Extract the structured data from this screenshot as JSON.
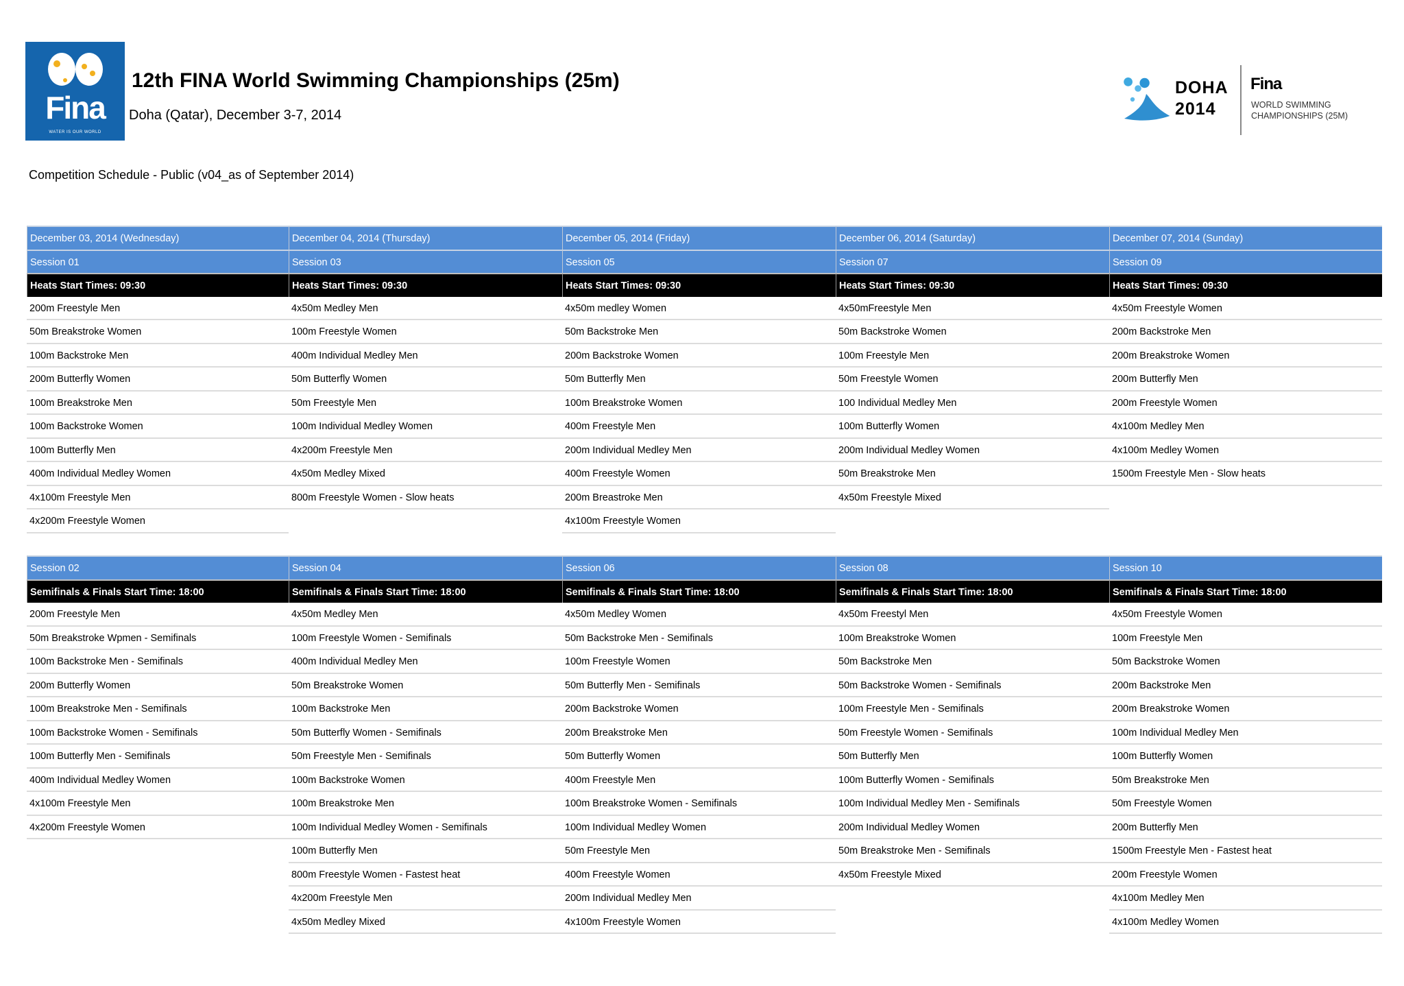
{
  "header": {
    "logo_text": "Fina",
    "logo_tagline": "WATER IS OUR WORLD",
    "title": "12th FINA World Swimming Championships (25m)",
    "subtitle": "Doha (Qatar), December 3-7, 2014",
    "schedule_note": "Competition Schedule - Public (v04_as of September 2014)",
    "event_logo": {
      "city": "DOHA",
      "year": "2014",
      "brand": "Fina",
      "line1": "WORLD SWIMMING",
      "line2": "CHAMPIONSHIPS (25M)"
    }
  },
  "colors": {
    "session_header": "#538dd5",
    "time_header": "#000000",
    "row_divider": "#dcdcdc",
    "fina_blue": "#1565ad"
  },
  "heats": [
    {
      "date": "December 03, 2014 (Wednesday)",
      "session": "Session 01",
      "time": "Heats Start Times: 09:30",
      "events": [
        "200m Freestyle  Men",
        "50m Breakstroke  Women",
        "100m Backstroke Men",
        "200m Butterfly  Women",
        "100m Breakstroke  Men",
        "100m Backstroke Women",
        "100m Butterfly  Men",
        "400m Individual Medley  Women",
        "4x100m Freestyle  Men",
        "4x200m Freestyle  Women"
      ]
    },
    {
      "date": "December 04, 2014 (Thursday)",
      "session": "Session 03",
      "time": "Heats Start Times: 09:30",
      "events": [
        "4x50m Medley Men",
        "100m Freestyle  Women",
        "400m Individual Medley  Men",
        "50m Butterfly  Women",
        "50m Freestyle  Men",
        "100m Individual Medley  Women",
        "4x200m Freestyle  Men",
        "4x50m Medley Mixed",
        "800m Freestyle Women - Slow heats"
      ]
    },
    {
      "date": "December 05, 2014 (Friday)",
      "session": "Session 05",
      "time": "Heats Start Times: 09:30",
      "events": [
        "4x50m medley Women",
        "50m Backstroke Men",
        "200m Backstroke Women",
        "50m Butterfly  Men",
        "100m Breakstroke  Women",
        "400m Freestyle  Men",
        "200m Individual Medley  Men",
        "400m Freestyle  Women",
        "200m Breastroke Men",
        "4x100m Freestyle  Women"
      ]
    },
    {
      "date": "December 06, 2014 (Saturday)",
      "session": "Session 07",
      "time": "Heats Start Times: 09:30",
      "events": [
        "4x50mFreestyle Men",
        "50m Backstroke Women",
        "100m Freestyle  Men",
        "50m Freestyle  Women",
        "100 Individual Medley  Men",
        "100m Butterfly  Women",
        "200m Individual Medley  Women",
        "50m Breakstroke  Men",
        "4x50m Freestyle Mixed"
      ]
    },
    {
      "date": "December 07, 2014 (Sunday)",
      "session": "Session 09",
      "time": "Heats Start Times: 09:30",
      "events": [
        "4x50m Freestyle Women",
        "200m Backstroke Men",
        "200m Breakstroke  Women",
        "200m Butterfly  Men",
        "200m Freestyle  Women",
        "4x100m Medley Men",
        "4x100m Medley Women",
        "1500m Freestyle  Men - Slow heats"
      ]
    }
  ],
  "finals": [
    {
      "session": "Session 02",
      "time": "Semifinals & Finals Start Time: 18:00",
      "events": [
        "200m Freestyle  Men",
        "50m Breakstroke  Wpmen - Semifinals",
        "100m Backstroke Men - Semifinals",
        "200m Butterfly  Women",
        "100m Breakstroke  Men - Semifinals",
        "100m Backstroke Women - Semifinals",
        "100m Butterfly  Men - Semifinals",
        "400m Individual Medley  Women",
        "4x100m Freestyle  Men",
        "4x200m Freestyle  Women"
      ]
    },
    {
      "session": "Session 04",
      "time": "Semifinals & Finals Start Time: 18:00",
      "events": [
        "4x50m Medley Men",
        "100m Freestyle  Women - Semifinals",
        "400m Individual Medley  Men",
        "50m Breakstroke  Women",
        "100m Backstroke Men",
        "50m Butterfly  Women - Semifinals",
        "50m Freestyle  Men - Semifinals",
        "100m Backstroke Women",
        "100m Breakstroke  Men",
        "100m Individual Medley  Women - Semifinals",
        "100m Butterfly  Men",
        "800m Freestyle  Women - Fastest  heat",
        "4x200m Freestyle  Men",
        "4x50m Medley Mixed"
      ]
    },
    {
      "session": "Session 06",
      "time": "Semifinals & Finals Start Time: 18:00",
      "events": [
        "4x50m Medley Women",
        "50m Backstroke Men - Semifinals",
        "100m Freestyle  Women",
        "50m Butterfly  Men - Semifinals",
        "200m Backstroke Women",
        "200m Breakstroke  Men",
        "50m Butterfly  Women",
        "400m Freestyle  Men",
        "100m Breakstroke  Women - Semifinals",
        "100m Individual Medley  Women",
        "50m Freestyle  Men",
        "400m Freestyle  Women",
        "200m Individual Medley  Men",
        "4x100m Freestyle  Women"
      ]
    },
    {
      "session": "Session 08",
      "time": "Semifinals & Finals Start Time: 18:00",
      "events": [
        "4x50m Freestyl Men",
        "100m Breakstroke  Women",
        "50m Backstroke Men",
        "50m Backstroke Women - Semifinals",
        "100m Freestyle  Men - Semifinals",
        "50m Freestyle  Women - Semifinals",
        "50m Butterfly  Men",
        "100m Butterfly  Women - Semifinals",
        "100m Individual Medley  Men - Semifinals",
        "200m Individual Medley  Women",
        "50m Breakstroke  Men - Semifinals",
        "4x50m Freestyle Mixed"
      ]
    },
    {
      "session": "Session 10",
      "time": "Semifinals & Finals Start Time: 18:00",
      "events": [
        "4x50m Freestyle Women",
        "100m Freestyle  Men",
        "50m Backstroke Women",
        "200m Backstroke Men",
        "200m Breakstroke  Women",
        "100m Individual Medley  Men",
        "100m Butterfly  Women",
        "50m Breakstroke  Men",
        "50m Freestyle  Women",
        "200m Butterfly  Men",
        "1500m Freestyle  Men - Fastest  heat",
        "200m Freestyle  Women",
        "4x100m Medley Men",
        "4x100m Medley Women"
      ]
    }
  ]
}
